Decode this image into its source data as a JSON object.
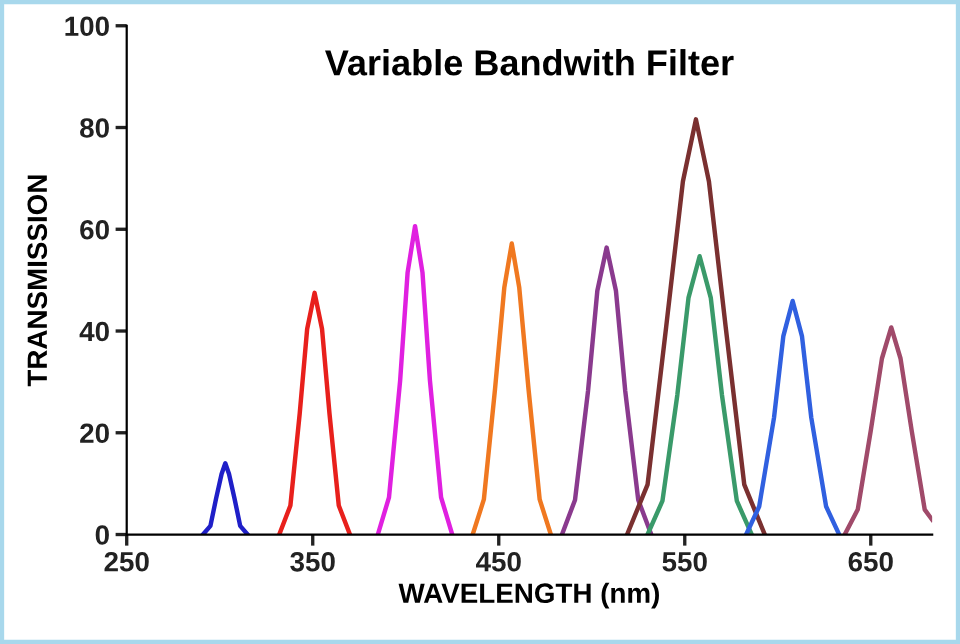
{
  "chart_data": {
    "type": "line",
    "title": "Variable Bandwith Filter",
    "xlabel": "WAVELENGTH (nm)",
    "ylabel": "TRANSMISSION",
    "xlim": [
      250,
      683
    ],
    "ylim": [
      0,
      100
    ],
    "xticks": [
      250,
      350,
      450,
      550,
      650
    ],
    "yticks": [
      0,
      20,
      40,
      60,
      80,
      100
    ],
    "grid": false,
    "legend": false,
    "marker": "none",
    "line_style": "solid",
    "series": [
      {
        "color": "#1f1fc8",
        "x": [
          291,
          295,
          298,
          301,
          303,
          305,
          308,
          311,
          315
        ],
        "values": [
          0,
          1.7,
          7,
          11.9,
          14,
          11.9,
          7,
          1.7,
          0
        ]
      },
      {
        "color": "#e8201c",
        "x": [
          332,
          338,
          343,
          347,
          351,
          355,
          359,
          364,
          370
        ],
        "values": [
          0,
          5.7,
          23.8,
          40.4,
          47.5,
          40.4,
          23.8,
          5.7,
          0
        ]
      },
      {
        "color": "#e020e0",
        "x": [
          385,
          391,
          397,
          401,
          405,
          409,
          413,
          419,
          425
        ],
        "values": [
          0,
          7.3,
          30.3,
          51.5,
          60.6,
          51.5,
          30.3,
          7.3,
          0
        ]
      },
      {
        "color": "#f07820",
        "x": [
          436,
          442,
          448,
          453,
          457,
          461,
          466,
          472,
          478
        ],
        "values": [
          0,
          6.9,
          28.6,
          48.6,
          57.2,
          48.6,
          28.6,
          6.9,
          0
        ]
      },
      {
        "color": "#8a3a8e",
        "x": [
          484,
          491,
          498,
          503,
          508,
          513,
          518,
          525,
          532
        ],
        "values": [
          0,
          6.8,
          28.2,
          47.9,
          56.4,
          47.9,
          28.2,
          6.8,
          0
        ]
      },
      {
        "color": "#7a3030",
        "x": [
          519,
          530,
          540,
          549,
          556,
          563,
          572,
          582,
          593
        ],
        "values": [
          0,
          9.8,
          40.8,
          69.4,
          81.6,
          69.4,
          40.8,
          9.8,
          0
        ]
      },
      {
        "color": "#3a9a6a",
        "x": [
          530,
          538,
          546,
          552,
          558,
          564,
          570,
          578,
          586
        ],
        "values": [
          0,
          6.6,
          27.4,
          46.5,
          54.7,
          46.5,
          27.4,
          6.6,
          0
        ]
      },
      {
        "color": "#3060e0",
        "x": [
          583,
          590,
          598,
          603,
          608,
          613,
          618,
          626,
          633
        ],
        "values": [
          0,
          5.5,
          23,
          39,
          45.9,
          39,
          23,
          5.5,
          0
        ]
      },
      {
        "color": "#a04a6a",
        "x": [
          636,
          643,
          650,
          656,
          661,
          666,
          672,
          679,
          683
        ],
        "values": [
          0,
          4.9,
          20.4,
          34.6,
          40.7,
          34.6,
          20.4,
          4.9,
          2.9
        ]
      }
    ]
  }
}
